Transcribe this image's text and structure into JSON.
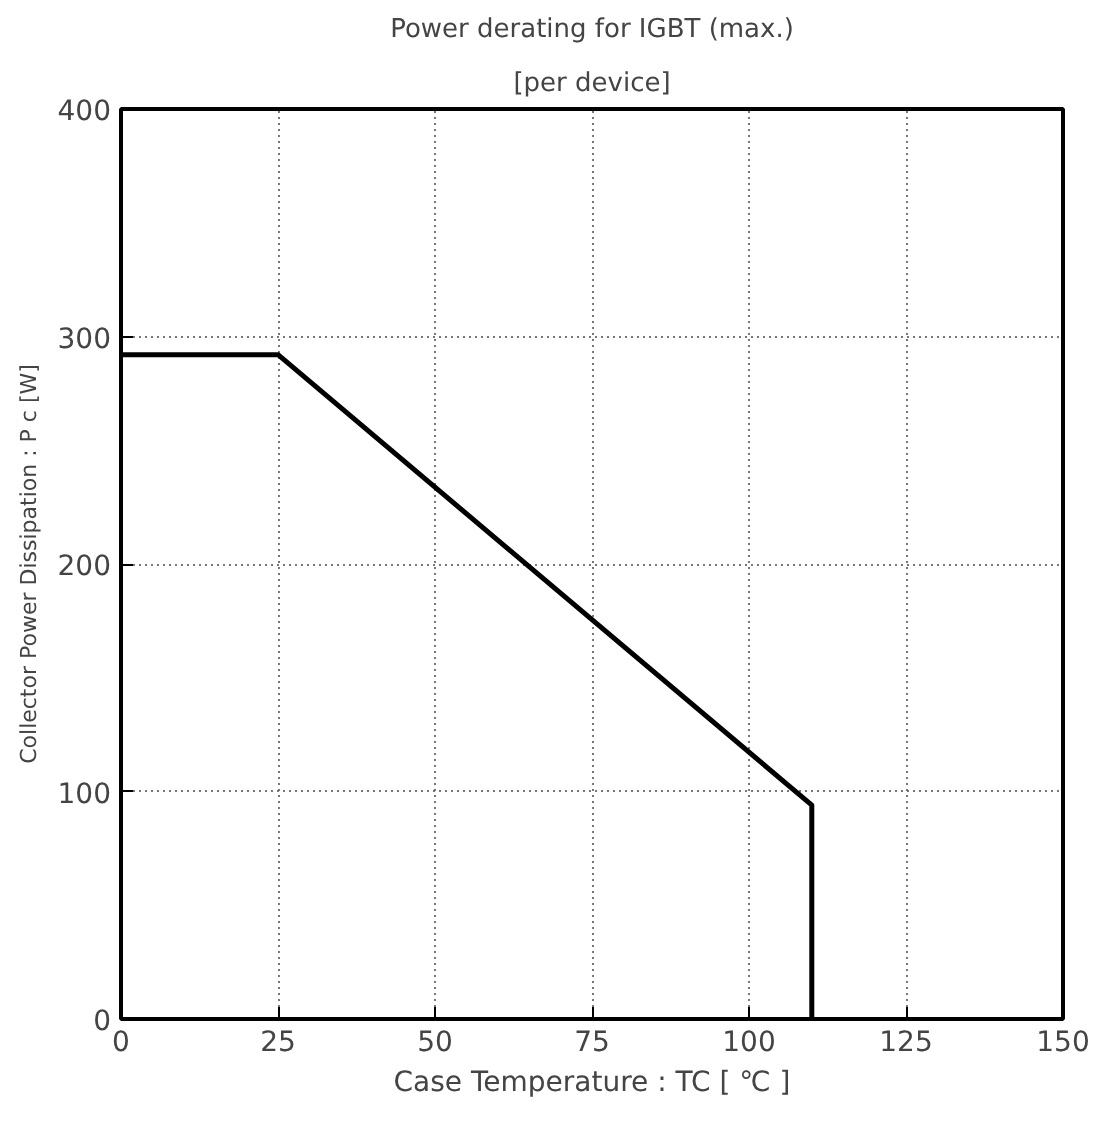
{
  "chart_data": {
    "type": "line",
    "title": "Power derating for IGBT (max.)",
    "subtitle": "[per device]",
    "xlabel": "Case Temperature : TC [ ℃ ]",
    "ylabel": "Collector Power Dissipation : P c [W]",
    "x": [
      0,
      25,
      110,
      110
    ],
    "series": [
      {
        "color": "#000000",
        "values": [
          292,
          292,
          94,
          0
        ]
      }
    ],
    "xlim": [
      0,
      150
    ],
    "ylim": [
      0,
      400
    ],
    "xticks": [
      0,
      25,
      50,
      75,
      100,
      125,
      150
    ],
    "yticks": [
      0,
      100,
      200,
      300,
      400
    ],
    "grid": true,
    "marker": "none",
    "line_style": "solid"
  }
}
